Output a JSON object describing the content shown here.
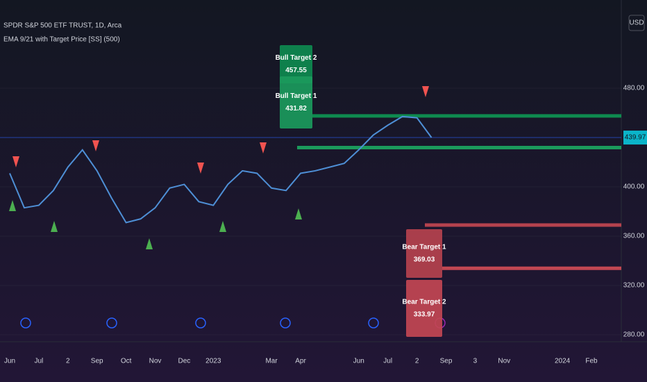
{
  "chart_data": {
    "type": "line",
    "title": "SPDR S&P 500 ETF TRUST, 1D, Arca",
    "subtitle": "EMA 9/21 with Target Price [SS] (500)",
    "currency": "USD",
    "categories": [
      "Jun",
      null,
      "Jul",
      null,
      "2",
      null,
      "Sep",
      null,
      "Oct",
      null,
      "Nov",
      null,
      "Dec",
      null,
      "2023",
      null,
      null,
      null,
      "Mar",
      null,
      "Apr",
      null,
      null,
      null,
      "Jun",
      null,
      "Jul",
      null,
      "2",
      null,
      "Sep",
      null,
      "3",
      null,
      "Nov",
      null,
      null,
      null,
      "2024",
      null,
      "Feb"
    ],
    "series": [
      {
        "color": "#4e8fd6",
        "values": [
          411,
          383,
          385,
          397,
          416,
          430,
          413,
          391,
          371,
          374,
          383,
          399,
          402,
          388,
          385,
          402,
          413,
          411,
          399,
          397,
          411,
          413,
          416,
          419,
          430,
          442,
          450,
          457,
          456,
          440,
          null,
          null,
          null,
          null,
          null,
          null,
          null,
          null,
          null,
          null,
          null
        ]
      }
    ],
    "last_price": 439.97,
    "targets": [
      {
        "label": "Bull Target 2",
        "value": 457.55,
        "color": "#0e8a4f"
      },
      {
        "label": "Bull Target 1",
        "value": 431.82,
        "color": "#1b9a5c"
      },
      {
        "label": "Bear Target 1",
        "value": 369.03,
        "color": "#b5424e"
      },
      {
        "label": "Bear Target 2",
        "value": 333.97,
        "color": "#c24752"
      }
    ],
    "ylim": [
      274.37,
      551.55
    ],
    "yticks": [
      {
        "value": 480,
        "label": "480.00"
      },
      {
        "value": 400,
        "label": "400.00"
      },
      {
        "value": 360,
        "label": "360.00"
      },
      {
        "value": 320,
        "label": "320.00"
      },
      {
        "value": 280,
        "label": "280.00"
      }
    ],
    "grid": true
  }
}
